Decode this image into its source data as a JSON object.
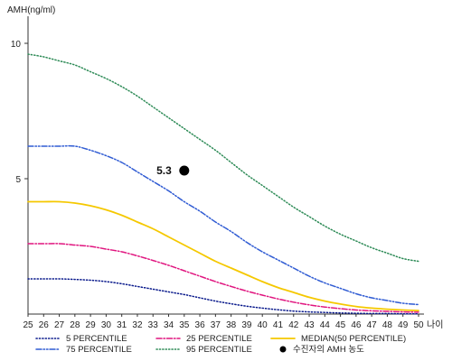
{
  "chart_data": {
    "type": "line",
    "title": "",
    "ylabel": "AMH(ng/ml)",
    "xlabel": "나이",
    "xlim": [
      25,
      50
    ],
    "ylim": [
      0,
      11
    ],
    "x_ticks": [
      25,
      26,
      27,
      28,
      29,
      30,
      31,
      32,
      33,
      34,
      35,
      36,
      37,
      38,
      39,
      40,
      41,
      42,
      43,
      44,
      45,
      46,
      47,
      48,
      49,
      50
    ],
    "y_ticks": [
      5,
      10
    ],
    "x": [
      25,
      26,
      27,
      28,
      29,
      30,
      31,
      32,
      33,
      34,
      35,
      36,
      37,
      38,
      39,
      40,
      41,
      42,
      43,
      44,
      45,
      46,
      47,
      48,
      49,
      50
    ],
    "series": [
      {
        "name": "95 PERCENTILE",
        "color": "#2e8b57",
        "dash": "dotted",
        "values": [
          9.6,
          9.5,
          9.35,
          9.2,
          8.95,
          8.7,
          8.4,
          8.05,
          7.65,
          7.25,
          6.85,
          6.45,
          6.05,
          5.6,
          5.15,
          4.75,
          4.35,
          3.95,
          3.6,
          3.25,
          2.95,
          2.7,
          2.45,
          2.25,
          2.05,
          1.95
        ]
      },
      {
        "name": "75 PERCENTILE",
        "color": "#2f5bd3",
        "dash": "dashdotdot",
        "values": [
          6.2,
          6.2,
          6.2,
          6.2,
          6.05,
          5.85,
          5.6,
          5.25,
          4.9,
          4.55,
          4.15,
          3.8,
          3.4,
          3.05,
          2.65,
          2.3,
          2.0,
          1.7,
          1.4,
          1.15,
          0.95,
          0.75,
          0.6,
          0.5,
          0.4,
          0.35
        ]
      },
      {
        "name": "MEDIAN(50 PERCENTILE)",
        "color": "#f5c800",
        "dash": "solid",
        "values": [
          4.15,
          4.15,
          4.15,
          4.1,
          4.0,
          3.85,
          3.65,
          3.4,
          3.15,
          2.85,
          2.55,
          2.25,
          1.95,
          1.7,
          1.45,
          1.2,
          0.98,
          0.8,
          0.62,
          0.48,
          0.37,
          0.28,
          0.22,
          0.18,
          0.15,
          0.13
        ]
      },
      {
        "name": "25 PERCENTILE",
        "color": "#e0157f",
        "dash": "dashdot",
        "values": [
          2.6,
          2.6,
          2.6,
          2.55,
          2.5,
          2.4,
          2.3,
          2.15,
          1.98,
          1.8,
          1.6,
          1.4,
          1.2,
          1.02,
          0.85,
          0.7,
          0.56,
          0.44,
          0.34,
          0.26,
          0.2,
          0.15,
          0.12,
          0.1,
          0.08,
          0.07
        ]
      },
      {
        "name": "5 PERCENTILE",
        "color": "#0a1a8c",
        "dash": "dotted",
        "values": [
          1.3,
          1.3,
          1.3,
          1.28,
          1.25,
          1.2,
          1.12,
          1.02,
          0.92,
          0.82,
          0.72,
          0.6,
          0.48,
          0.38,
          0.29,
          0.22,
          0.16,
          0.11,
          0.08,
          0.06,
          0.04,
          0.03,
          0.02,
          0.02,
          0.01,
          0.01
        ]
      }
    ],
    "point": {
      "name": "수진자의 AMH 농도",
      "x": 35,
      "y": 5.3,
      "label": "5.3",
      "color": "#000000"
    },
    "legend": {
      "placement": "bottom",
      "order": [
        "5 PERCENTILE",
        "25 PERCENTILE",
        "MEDIAN(50 PERCENTILE)",
        "75 PERCENTILE",
        "95 PERCENTILE",
        "수진자의 AMH 농도"
      ]
    },
    "grid": false
  }
}
